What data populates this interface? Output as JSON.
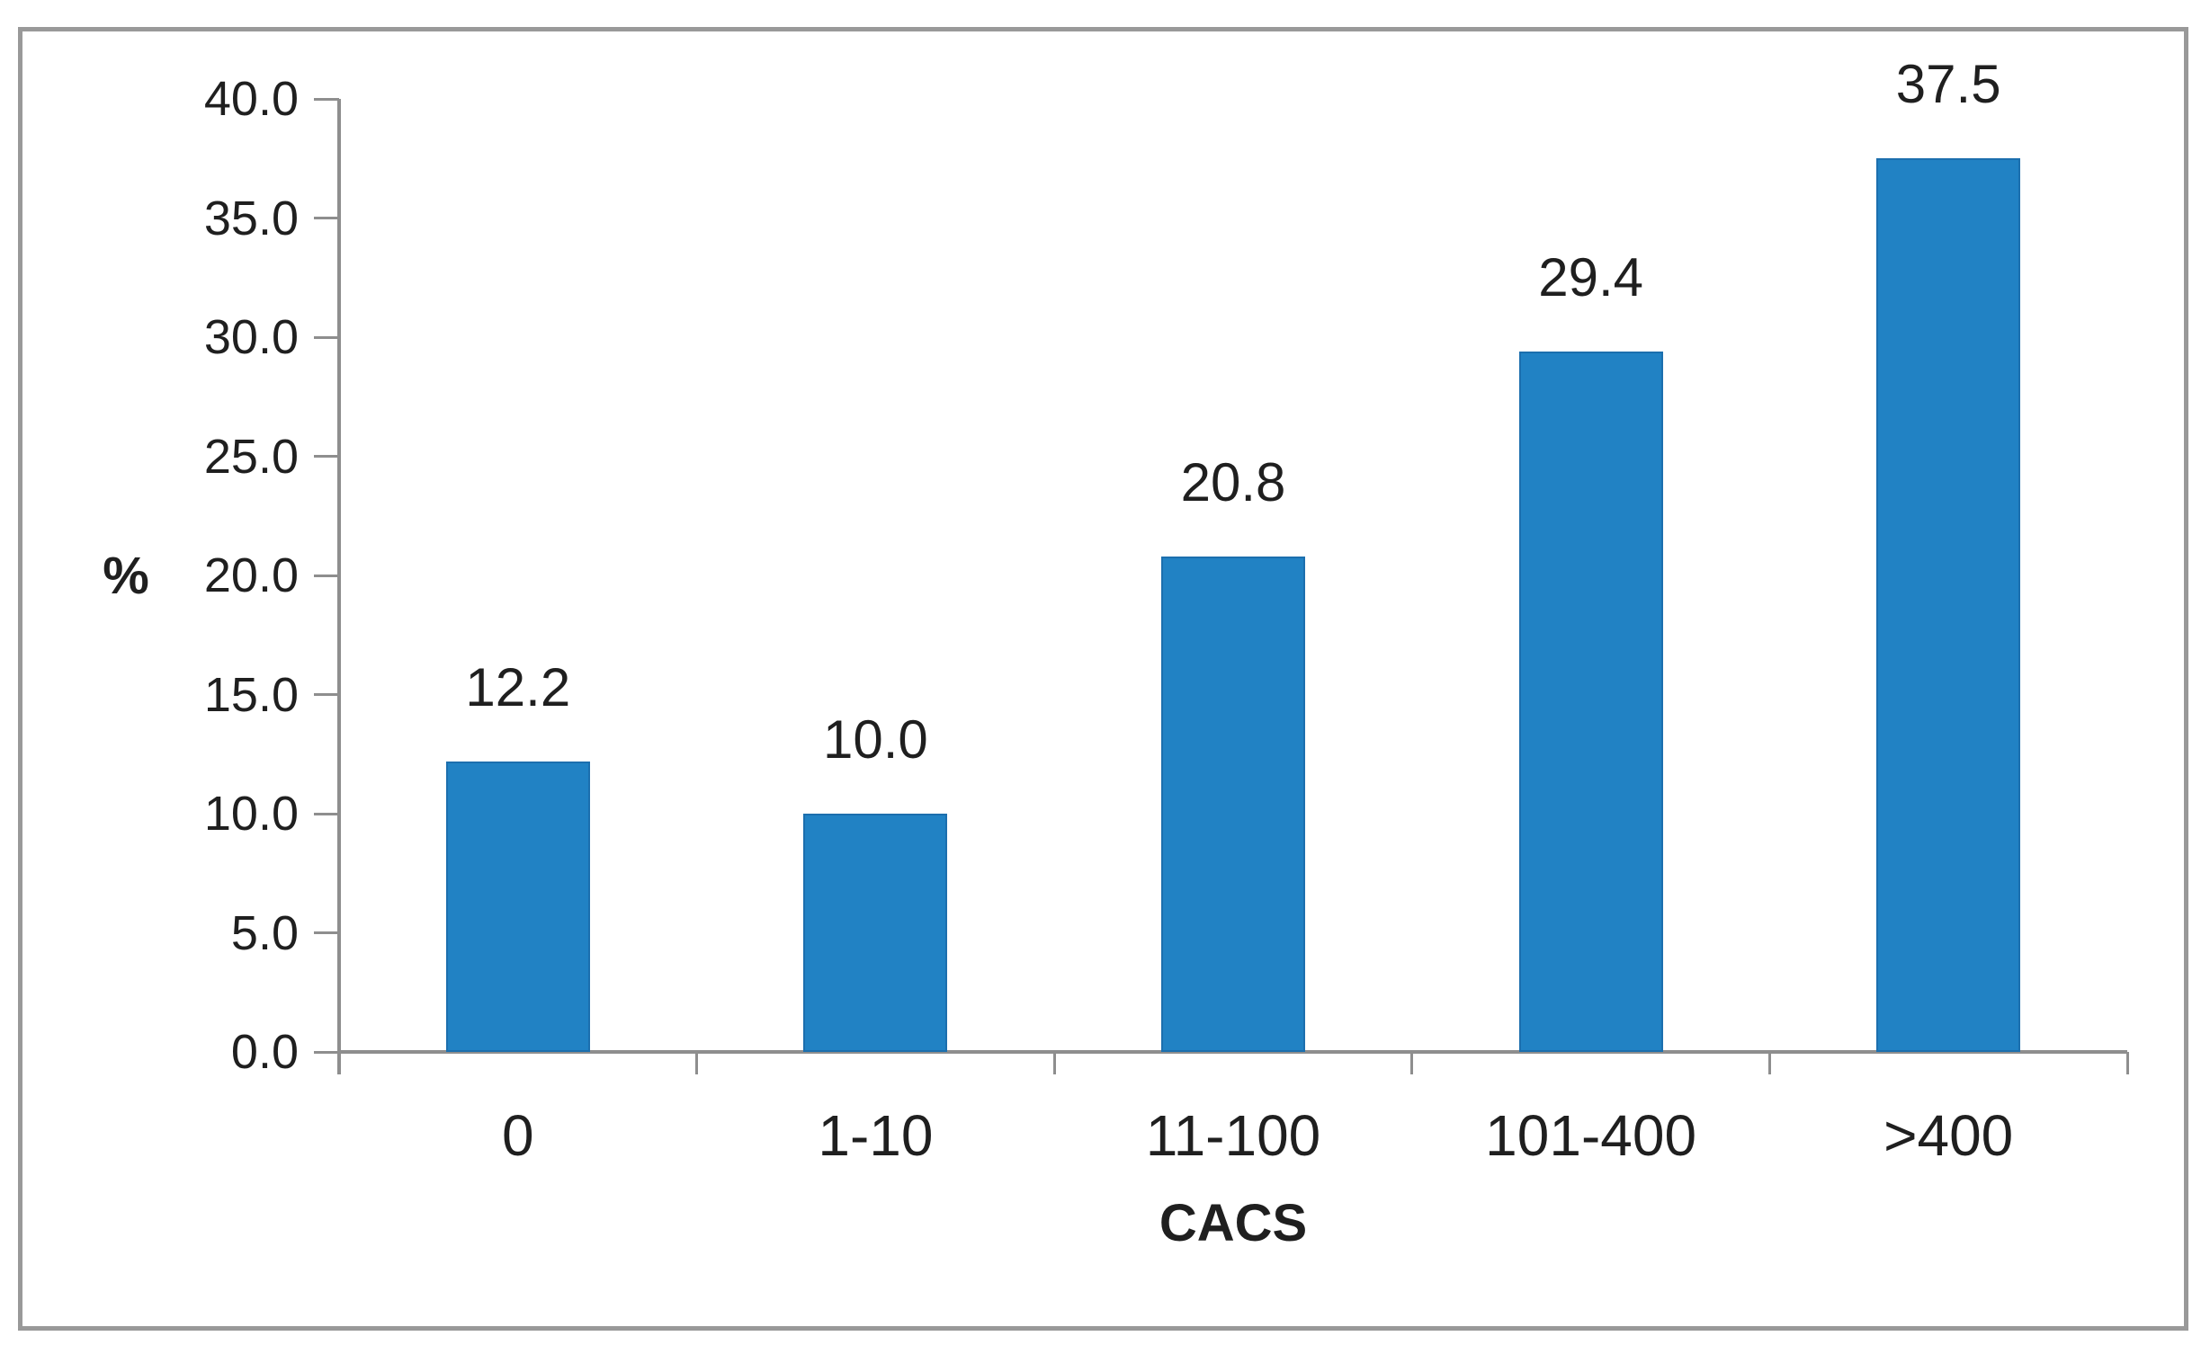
{
  "chart_data": {
    "type": "bar",
    "title": "",
    "categories": [
      "0",
      "1-10",
      "11-100",
      "101-400",
      ">400"
    ],
    "values": [
      12.2,
      10.0,
      20.8,
      29.4,
      37.5
    ],
    "data_labels": [
      "12.2",
      "10.0",
      "20.8",
      "29.4",
      "37.5"
    ],
    "xlabel": "CACS",
    "ylabel": "%",
    "ylim": [
      0,
      40
    ],
    "ytick_step": 5,
    "ytick_labels": [
      "0.0",
      "5.0",
      "10.0",
      "15.0",
      "20.0",
      "25.0",
      "30.0",
      "35.0",
      "40.0"
    ],
    "grid": false,
    "legend": "none",
    "colors": {
      "bar_fill": "#2182c4",
      "bar_edge": "#1c6fae",
      "axis": "#8e8e8e",
      "frame_border": "#999999",
      "text": "#1f1f1f"
    }
  }
}
